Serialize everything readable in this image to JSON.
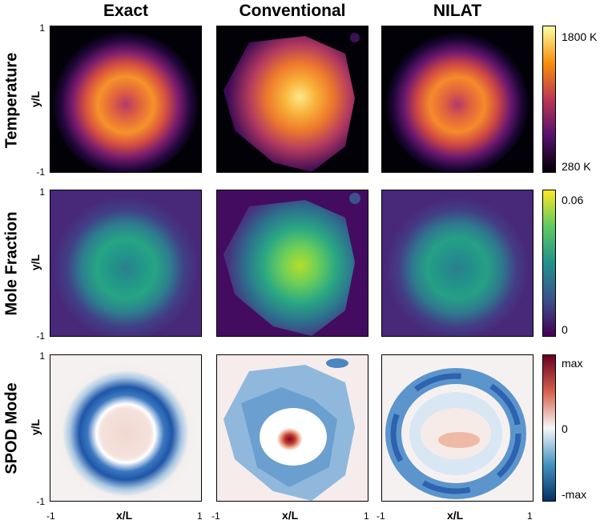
{
  "columns": [
    "Exact",
    "Conventional",
    "NILAT"
  ],
  "rows": [
    {
      "label": "Temperature",
      "colorbar_top": "1800 K",
      "colorbar_bottom": "280 K",
      "colorbar_mid": "",
      "colors": [
        "#fcffa4",
        "#f98e09",
        "#bc3754",
        "#57106e",
        "#000004"
      ]
    },
    {
      "label": "Mole Fraction",
      "colorbar_top": "0.06",
      "colorbar_bottom": "0",
      "colorbar_mid": "",
      "colors": [
        "#fde725",
        "#5ec962",
        "#21918c",
        "#3b528b",
        "#440154"
      ]
    },
    {
      "label": "SPOD Mode",
      "colorbar_top": "max",
      "colorbar_bottom": "-max",
      "colorbar_mid": "0",
      "colors": [
        "#67001f",
        "#d6604d",
        "#f7f7f7",
        "#4393c3",
        "#053061"
      ]
    }
  ],
  "axes": {
    "ylabel": "y/L",
    "xlabel": "x/L",
    "ytick_top": "1",
    "ytick_bottom": "-1",
    "xtick_left": "-1",
    "xtick_right": "1"
  }
}
